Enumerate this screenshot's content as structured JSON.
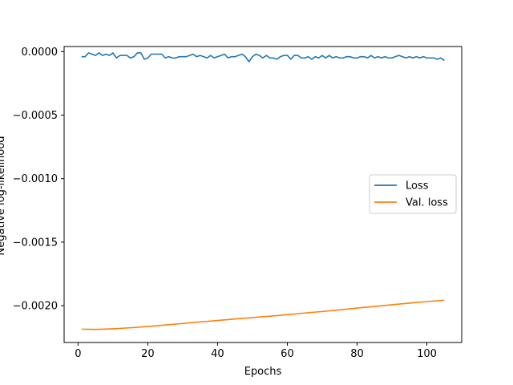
{
  "chart_data": {
    "type": "line",
    "title": "",
    "xlabel": "Epochs",
    "ylabel": "Negative log-likelihood",
    "xlim": [
      -4,
      110
    ],
    "ylim": [
      -0.00229,
      4e-05
    ],
    "xticks": [
      0,
      20,
      40,
      60,
      80,
      100
    ],
    "xtick_labels": [
      "0",
      "20",
      "40",
      "60",
      "80",
      "100"
    ],
    "yticks": [
      0.0,
      -0.0005,
      -0.001,
      -0.0015,
      -0.002
    ],
    "ytick_labels": [
      "0.0000",
      "−0.0005",
      "−0.0010",
      "−0.0015",
      "−0.0020"
    ],
    "grid": false,
    "legend_position": "center-right",
    "series": [
      {
        "name": "Loss",
        "color": "#1f77b4",
        "x": [
          1,
          2,
          3,
          4,
          5,
          6,
          7,
          8,
          9,
          10,
          11,
          12,
          13,
          14,
          15,
          16,
          17,
          18,
          19,
          20,
          21,
          22,
          23,
          24,
          25,
          26,
          27,
          28,
          29,
          30,
          31,
          32,
          33,
          34,
          35,
          36,
          37,
          38,
          39,
          40,
          41,
          42,
          43,
          44,
          45,
          46,
          47,
          48,
          49,
          50,
          51,
          52,
          53,
          54,
          55,
          56,
          57,
          58,
          59,
          60,
          61,
          62,
          63,
          64,
          65,
          66,
          67,
          68,
          69,
          70,
          71,
          72,
          73,
          74,
          75,
          76,
          77,
          78,
          79,
          80,
          81,
          82,
          83,
          84,
          85,
          86,
          87,
          88,
          89,
          90,
          91,
          92,
          93,
          94,
          95,
          96,
          97,
          98,
          99,
          100,
          101,
          102,
          103,
          104,
          105
        ],
        "y": [
          -4e-05,
          -4e-05,
          -1e-05,
          -2e-05,
          -3e-05,
          -1e-05,
          -3e-05,
          -2e-05,
          -3e-05,
          -1e-05,
          -5e-05,
          -3e-05,
          -3e-05,
          -3e-05,
          -5e-05,
          -4e-05,
          -1e-05,
          -1e-05,
          -6e-05,
          -5e-05,
          -2e-05,
          -2e-05,
          -2e-05,
          -2e-05,
          -5e-05,
          -4e-05,
          -5e-05,
          -5e-05,
          -4e-05,
          -4e-05,
          -4e-05,
          -3e-05,
          -2e-05,
          -4e-05,
          -3e-05,
          -4e-05,
          -5e-05,
          -3e-05,
          -5e-05,
          -4e-05,
          -3e-05,
          -2e-05,
          -5e-05,
          -4e-05,
          -4e-05,
          -3e-05,
          -2e-05,
          -4e-05,
          -8e-05,
          -4e-05,
          -2e-05,
          -3e-05,
          -5e-05,
          -3e-05,
          -5e-05,
          -5e-05,
          -6e-05,
          -4e-05,
          -3e-05,
          -3e-05,
          -6e-05,
          -3e-05,
          -3e-05,
          -5e-05,
          -5e-05,
          -4e-05,
          -6e-05,
          -4e-05,
          -5e-05,
          -3e-05,
          -5e-05,
          -3e-05,
          -5e-05,
          -4e-05,
          -5e-05,
          -5e-05,
          -4e-05,
          -4e-05,
          -5e-05,
          -5e-05,
          -4e-05,
          -4e-05,
          -5e-05,
          -3e-05,
          -5e-05,
          -4e-05,
          -5e-05,
          -4e-05,
          -5e-05,
          -5e-05,
          -4e-05,
          -3e-05,
          -4e-05,
          -5e-05,
          -4e-05,
          -5e-05,
          -4e-05,
          -5e-05,
          -4e-05,
          -5e-05,
          -5e-05,
          -5e-05,
          -6e-05,
          -5e-05,
          -7e-05
        ]
      },
      {
        "name": "Val. loss",
        "color": "#ff7f0e",
        "x": [
          1,
          5,
          10,
          15,
          20,
          25,
          30,
          35,
          40,
          45,
          50,
          55,
          60,
          65,
          70,
          75,
          80,
          85,
          90,
          95,
          100,
          105
        ],
        "y": [
          -0.002185,
          -0.002187,
          -0.002182,
          -0.002174,
          -0.002164,
          -0.002152,
          -0.00214,
          -0.002128,
          -0.002117,
          -0.002105,
          -0.002094,
          -0.002083,
          -0.002071,
          -0.002058,
          -0.002046,
          -0.002033,
          -0.002019,
          -0.002006,
          -0.001993,
          -0.00198,
          -0.001968,
          -0.001957
        ]
      }
    ]
  }
}
